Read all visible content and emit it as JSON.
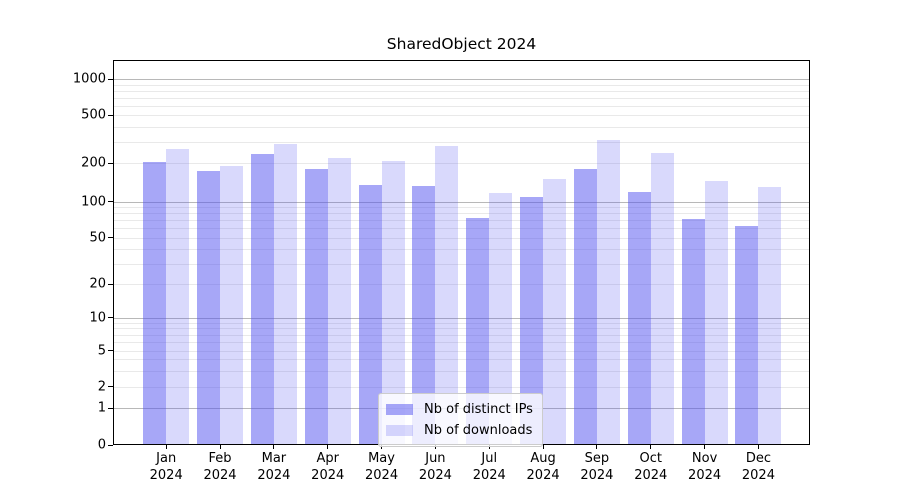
{
  "title": "SharedObject 2024",
  "chart_data": {
    "type": "bar",
    "title": "SharedObject 2024",
    "categories": [
      {
        "month": "Jan",
        "year": "2024"
      },
      {
        "month": "Feb",
        "year": "2024"
      },
      {
        "month": "Mar",
        "year": "2024"
      },
      {
        "month": "Apr",
        "year": "2024"
      },
      {
        "month": "May",
        "year": "2024"
      },
      {
        "month": "Jun",
        "year": "2024"
      },
      {
        "month": "Jul",
        "year": "2024"
      },
      {
        "month": "Aug",
        "year": "2024"
      },
      {
        "month": "Sep",
        "year": "2024"
      },
      {
        "month": "Oct",
        "year": "2024"
      },
      {
        "month": "Nov",
        "year": "2024"
      },
      {
        "month": "Dec",
        "year": "2024"
      }
    ],
    "series": [
      {
        "name": "Nb of distinct IPs",
        "key": "distinct-ips",
        "color": "rgba(80,80,240,0.5)",
        "values": [
          205,
          175,
          240,
          182,
          136,
          133,
          73,
          108,
          180,
          120,
          72,
          63
        ]
      },
      {
        "name": "Nb of downloads",
        "key": "downloads",
        "color": "rgba(80,80,240,0.22)",
        "values": [
          263,
          190,
          290,
          220,
          208,
          277,
          117,
          150,
          310,
          245,
          146,
          131
        ]
      }
    ],
    "yscale": "symlog-1-2-5",
    "y_ticks": [
      0,
      1,
      2,
      5,
      10,
      20,
      50,
      100,
      200,
      500,
      1000
    ],
    "ylim": [
      0,
      1400
    ],
    "grid": "horizontal",
    "legend_position": "lower center"
  },
  "colors": {
    "grid_major": "#b8b8b8",
    "grid_minor": "#e9e9e9",
    "axis": "#000000",
    "bar_base": "#5050f0"
  }
}
